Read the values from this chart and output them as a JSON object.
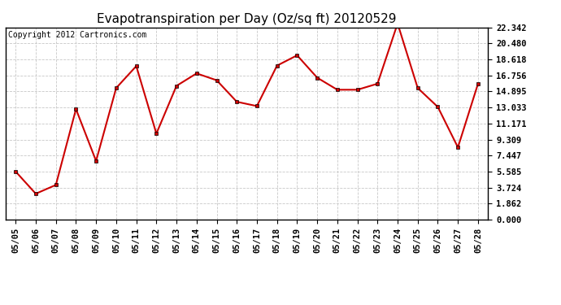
{
  "title": "Evapotranspiration per Day (Oz/sq ft) 20120529",
  "copyright": "Copyright 2012 Cartronics.com",
  "x_labels": [
    "05/05",
    "05/06",
    "05/07",
    "05/08",
    "05/09",
    "05/10",
    "05/11",
    "05/12",
    "05/13",
    "05/14",
    "05/15",
    "05/16",
    "05/17",
    "05/18",
    "05/19",
    "05/20",
    "05/21",
    "05/22",
    "05/23",
    "05/24",
    "05/25",
    "05/26",
    "05/27",
    "05/28"
  ],
  "y_values": [
    5.585,
    3.01,
    4.03,
    12.85,
    6.82,
    15.3,
    17.85,
    10.0,
    15.55,
    17.0,
    16.2,
    13.7,
    13.2,
    17.9,
    19.1,
    16.5,
    15.1,
    15.1,
    15.8,
    22.8,
    15.3,
    13.1,
    8.4,
    15.8
  ],
  "line_color": "#cc0000",
  "marker": "s",
  "marker_size": 3,
  "bg_color": "#ffffff",
  "plot_bg_color": "#ffffff",
  "grid_color": "#c8c8c8",
  "y_min": 0.0,
  "y_max": 22.342,
  "y_ticks": [
    0.0,
    1.862,
    3.724,
    5.585,
    7.447,
    9.309,
    11.171,
    13.033,
    14.895,
    16.756,
    18.618,
    20.48,
    22.342
  ],
  "title_fontsize": 11,
  "copyright_fontsize": 7,
  "tick_fontsize": 7.5
}
